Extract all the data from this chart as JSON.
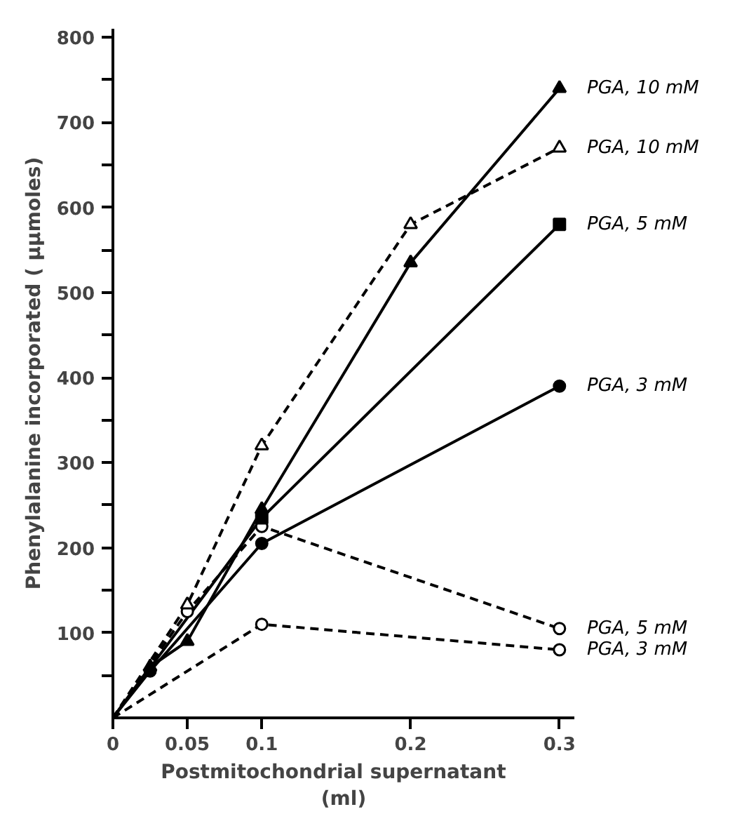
{
  "chart_data": {
    "type": "line",
    "xlabel": "Postmitochondrial    supernatant\n(ml)",
    "ylabel": "Phenylalanine incorporated ( μμmoles)",
    "xlim": [
      0,
      0.31
    ],
    "ylim": [
      0,
      810
    ],
    "xticks": [
      0,
      {
        "value": 0.05,
        "label": "0.05"
      },
      0.1,
      0.2,
      0.3
    ],
    "yticks": [
      {
        "value": 50,
        "label": null
      },
      100,
      {
        "value": 150,
        "label": null
      },
      200,
      {
        "value": 250,
        "label": null
      },
      300,
      {
        "value": 350,
        "label": null
      },
      400,
      {
        "value": 450,
        "label": null
      },
      500,
      {
        "value": 550,
        "label": null
      },
      600,
      {
        "value": 650,
        "label": null
      },
      700,
      {
        "value": 750,
        "label": null
      },
      800
    ],
    "grid": false,
    "series": [
      {
        "name": "PGA, 10 mM",
        "color": "#000000",
        "marker": "triangle",
        "line_style": "solid",
        "x": [
          0,
          0.025,
          0.05,
          0.1,
          0.2,
          0.3
        ],
        "values": [
          0,
          60,
          90,
          245,
          535,
          740
        ]
      },
      {
        "name": "PGA, 10 mM",
        "color": "#000000",
        "marker": "triangle",
        "line_style": "dashed",
        "x": [
          0,
          0.05,
          0.1,
          0.2,
          0.3
        ],
        "values": [
          0,
          133,
          320,
          580,
          670
        ]
      },
      {
        "name": "PGA, 5 mM",
        "color": "#000000",
        "marker": "square",
        "line_style": "solid",
        "x": [
          0,
          0.1,
          0.3
        ],
        "values": [
          0,
          235,
          580
        ]
      },
      {
        "name": "PGA, 3 mM",
        "color": "#000000",
        "marker": "circle",
        "line_style": "solid",
        "x": [
          0,
          0.025,
          0.1,
          0.3
        ],
        "values": [
          0,
          55,
          205,
          390
        ]
      },
      {
        "name": "PGA, 5 mM",
        "color": "#000000",
        "marker": "circle",
        "line_style": "dashed",
        "x": [
          0,
          0.05,
          0.1,
          0.3
        ],
        "values": [
          0,
          125,
          225,
          105
        ]
      },
      {
        "name": "PGA, 3 mM",
        "color": "#000000",
        "marker": "circle",
        "line_style": "dashed",
        "x": [
          0,
          0.1,
          0.3
        ],
        "values": [
          0,
          110,
          80
        ]
      }
    ]
  }
}
